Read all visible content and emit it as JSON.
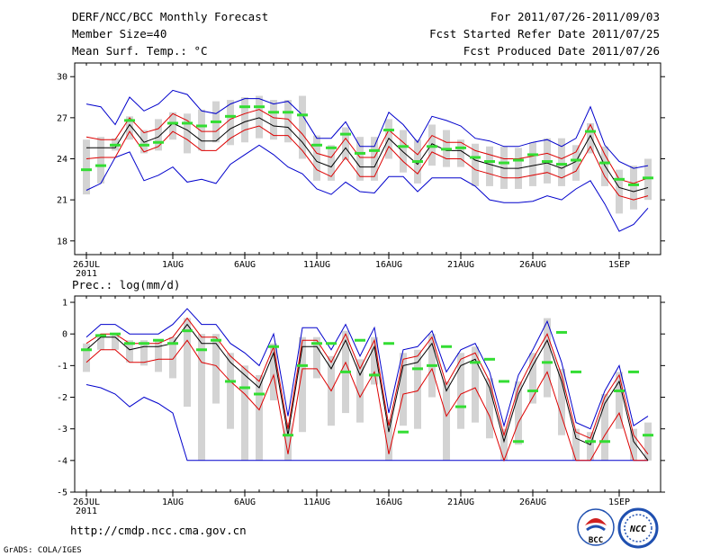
{
  "header": {
    "title": "DERF/NCC/BCC Monthly Forecast",
    "member_size": "Member Size=40",
    "variable": "Mean Surf. Temp.: °C",
    "period": "For 2011/07/26-2011/09/03",
    "started": "Fcst Started Refer Date 2011/07/25",
    "produced": "Fcst Produced Date 2011/07/26"
  },
  "footer": {
    "url": "http://cmdp.ncc.cma.gov.cn",
    "grads": "GrADS: COLA/IGES",
    "logo_bcc": "BCC",
    "logo_ncc": "NCC"
  },
  "colors": {
    "box": "#d3d3d3",
    "median": "#33dd33",
    "mean": "#000000",
    "spread": "#dd0000",
    "extreme": "#0000cc"
  },
  "chart_data": [
    {
      "type": "box-plume",
      "title": "Mean Surf. Temp.: °C",
      "ylim": [
        17,
        31
      ],
      "y_ticks": [
        18,
        21,
        24,
        27,
        30
      ],
      "x_tick_labels": [
        {
          "day": 0,
          "label": "26JUL",
          "sub": "2011"
        },
        {
          "day": 6,
          "label": "1AUG"
        },
        {
          "day": 11,
          "label": "6AUG"
        },
        {
          "day": 16,
          "label": "11AUG"
        },
        {
          "day": 21,
          "label": "16AUG"
        },
        {
          "day": 26,
          "label": "21AUG"
        },
        {
          "day": 31,
          "label": "26AUG"
        },
        {
          "day": 37,
          "label": "1SEP"
        }
      ],
      "mean": [
        24.8,
        24.8,
        24.8,
        26.5,
        25.2,
        25.6,
        26.6,
        26.1,
        25.3,
        25.3,
        26.2,
        26.7,
        27.0,
        26.4,
        26.3,
        25.2,
        23.8,
        23.4,
        24.8,
        23.4,
        23.4,
        25.5,
        24.5,
        23.6,
        25.1,
        24.6,
        24.6,
        23.9,
        23.6,
        23.3,
        23.3,
        23.5,
        23.7,
        23.3,
        23.8,
        25.7,
        23.5,
        21.9,
        21.6,
        21.9
      ],
      "spread_upper": [
        25.6,
        25.4,
        25.4,
        27.0,
        25.9,
        26.2,
        27.3,
        26.8,
        26.0,
        26.0,
        26.9,
        27.3,
        27.6,
        27.0,
        26.9,
        25.8,
        24.4,
        24.1,
        25.5,
        24.1,
        24.1,
        26.1,
        25.2,
        24.3,
        25.7,
        25.2,
        25.2,
        24.6,
        24.3,
        24.0,
        24.0,
        24.2,
        24.4,
        24.0,
        24.5,
        26.5,
        24.3,
        22.5,
        22.2,
        22.6
      ],
      "spread_lower": [
        24.0,
        24.1,
        24.1,
        26.0,
        24.5,
        24.9,
        26.0,
        25.4,
        24.6,
        24.6,
        25.5,
        26.1,
        26.4,
        25.7,
        25.7,
        24.6,
        23.2,
        22.7,
        24.1,
        22.7,
        22.7,
        24.9,
        23.8,
        22.9,
        24.5,
        24.0,
        24.0,
        23.2,
        22.9,
        22.6,
        22.6,
        22.8,
        23.0,
        22.6,
        23.1,
        24.9,
        22.7,
        21.3,
        21.0,
        21.3
      ],
      "max": [
        28.0,
        27.8,
        26.5,
        28.5,
        27.5,
        28.0,
        29.0,
        28.7,
        27.5,
        27.3,
        28.0,
        28.4,
        28.4,
        28.0,
        28.2,
        27.2,
        25.5,
        25.5,
        26.7,
        24.9,
        24.9,
        27.4,
        26.5,
        25.2,
        27.1,
        26.8,
        26.4,
        25.5,
        25.3,
        24.9,
        24.9,
        25.2,
        25.4,
        24.9,
        25.5,
        27.8,
        25.0,
        23.8,
        23.3,
        23.5
      ],
      "min": [
        21.7,
        22.2,
        24.1,
        24.5,
        22.4,
        22.8,
        23.4,
        22.3,
        22.5,
        22.2,
        23.6,
        24.3,
        25.0,
        24.3,
        23.4,
        22.9,
        21.8,
        21.4,
        22.3,
        21.6,
        21.5,
        22.7,
        22.7,
        21.6,
        22.6,
        22.6,
        22.6,
        22.0,
        21.0,
        20.8,
        20.8,
        20.9,
        21.3,
        21.0,
        21.8,
        22.4,
        20.7,
        18.7,
        19.2,
        20.4
      ],
      "box_high": [
        25.4,
        25.6,
        25.5,
        27.1,
        26.1,
        26.9,
        27.4,
        27.3,
        27.6,
        28.2,
        28.3,
        28.5,
        28.6,
        28.3,
        28.3,
        28.6,
        25.7,
        25.0,
        26.3,
        25.6,
        25.6,
        26.9,
        26.1,
        25.4,
        26.5,
        26.1,
        25.4,
        25.1,
        24.9,
        24.9,
        24.8,
        25.2,
        25.5,
        25.5,
        25.0,
        26.6,
        24.9,
        23.2,
        23.5,
        24.0
      ],
      "box_low": [
        21.4,
        22.2,
        24.6,
        25.4,
        24.4,
        24.6,
        25.4,
        24.4,
        24.6,
        25.2,
        25.0,
        25.2,
        25.5,
        25.4,
        25.2,
        24.0,
        22.4,
        22.4,
        23.9,
        22.4,
        22.4,
        24.0,
        23.0,
        22.2,
        23.5,
        23.4,
        23.4,
        22.0,
        22.0,
        21.8,
        21.8,
        22.0,
        22.2,
        22.0,
        22.4,
        24.4,
        22.0,
        20.0,
        20.3,
        21.0
      ],
      "median": [
        23.2,
        23.5,
        25.0,
        26.8,
        25.0,
        25.2,
        26.6,
        26.6,
        26.4,
        26.7,
        27.1,
        27.8,
        27.8,
        27.4,
        27.4,
        27.2,
        25.0,
        24.8,
        25.8,
        24.4,
        24.6,
        26.1,
        24.9,
        23.8,
        24.9,
        24.7,
        24.8,
        24.1,
        23.8,
        23.7,
        23.9,
        24.3,
        23.8,
        23.6,
        23.9,
        26.0,
        23.7,
        22.5,
        22.1,
        22.6
      ]
    },
    {
      "type": "box-plume",
      "title": "Prec.: log(mm/d)",
      "ylim": [
        -5,
        1.2
      ],
      "y_ticks": [
        -5,
        -4,
        -3,
        -2,
        -1,
        0,
        1
      ],
      "x_tick_labels": [
        {
          "day": 0,
          "label": "26JUL",
          "sub": "2011"
        },
        {
          "day": 6,
          "label": "1AUG"
        },
        {
          "day": 11,
          "label": "6AUG"
        },
        {
          "day": 16,
          "label": "11AUG"
        },
        {
          "day": 21,
          "label": "16AUG"
        },
        {
          "day": 26,
          "label": "21AUG"
        },
        {
          "day": 31,
          "label": "26AUG"
        },
        {
          "day": 37,
          "label": "1SEP"
        }
      ],
      "mean": [
        -0.5,
        -0.1,
        -0.1,
        -0.5,
        -0.4,
        -0.4,
        -0.3,
        0.3,
        -0.3,
        -0.3,
        -0.9,
        -1.3,
        -1.7,
        -0.6,
        -3.2,
        -0.4,
        -0.4,
        -1.1,
        -0.2,
        -1.3,
        -0.4,
        -3.1,
        -1.0,
        -0.9,
        -0.3,
        -1.8,
        -1.0,
        -0.8,
        -1.7,
        -3.4,
        -1.9,
        -1.0,
        -0.2,
        -1.5,
        -3.3,
        -3.5,
        -2.2,
        -1.5,
        -3.4,
        -4.0
      ],
      "spread_upper": [
        -0.3,
        0.0,
        0.0,
        -0.3,
        -0.3,
        -0.3,
        -0.1,
        0.5,
        -0.1,
        -0.1,
        -0.7,
        -1.1,
        -1.5,
        -0.4,
        -3.0,
        -0.2,
        -0.2,
        -0.9,
        0.0,
        -1.1,
        -0.2,
        -2.9,
        -0.8,
        -0.7,
        -0.1,
        -1.6,
        -0.8,
        -0.6,
        -1.5,
        -3.2,
        -1.7,
        -0.8,
        0.0,
        -1.3,
        -3.1,
        -3.3,
        -2.0,
        -1.3,
        -3.2,
        -3.8
      ],
      "spread_lower": [
        -0.9,
        -0.5,
        -0.5,
        -0.9,
        -0.9,
        -0.8,
        -0.8,
        -0.2,
        -0.9,
        -1.0,
        -1.5,
        -1.9,
        -2.4,
        -1.3,
        -3.8,
        -1.1,
        -1.1,
        -1.8,
        -0.9,
        -2.0,
        -1.2,
        -3.8,
        -1.9,
        -1.8,
        -1.1,
        -2.6,
        -1.9,
        -1.7,
        -2.6,
        -4.0,
        -2.8,
        -2.0,
        -1.2,
        -2.6,
        -4.0,
        -4.0,
        -3.2,
        -2.5,
        -4.0,
        -4.0
      ],
      "max": [
        -0.1,
        0.3,
        0.3,
        0.0,
        0.0,
        0.0,
        0.3,
        0.8,
        0.3,
        0.3,
        -0.3,
        -0.6,
        -1.0,
        0.0,
        -2.6,
        0.2,
        0.2,
        -0.5,
        0.3,
        -0.7,
        0.2,
        -2.5,
        -0.5,
        -0.4,
        0.1,
        -1.2,
        -0.5,
        -0.3,
        -1.2,
        -2.9,
        -1.3,
        -0.5,
        0.4,
        -0.9,
        -2.8,
        -3.0,
        -1.8,
        -1.0,
        -2.9,
        -2.6
      ],
      "min": [
        -1.6,
        -1.7,
        -1.9,
        -2.3,
        -2.0,
        -2.2,
        -2.5,
        -4.0,
        -4.0,
        -4.0,
        -4.0,
        -4.0,
        -4.0,
        -4.0,
        -4.0,
        -4.0,
        -4.0,
        -4.0,
        -4.0,
        -4.0,
        -4.0,
        -4.0,
        -4.0,
        -4.0,
        -4.0,
        -4.0,
        -4.0,
        -4.0,
        -4.0,
        -4.0,
        -4.0,
        -4.0,
        -4.0,
        -4.0,
        -4.0,
        -4.0,
        -4.0,
        -4.0,
        -4.0,
        -4.0
      ],
      "box_high": [
        -0.3,
        0.0,
        0.0,
        -0.2,
        -0.2,
        -0.2,
        -0.1,
        0.5,
        0.0,
        0.0,
        -0.6,
        -1.0,
        -1.3,
        -0.3,
        -2.8,
        -0.1,
        -0.1,
        -0.7,
        0.1,
        -0.8,
        -0.1,
        -2.7,
        -0.6,
        -0.5,
        0.0,
        -1.5,
        -0.6,
        -0.4,
        -1.4,
        -3.0,
        -1.5,
        -0.6,
        0.5,
        -1.1,
        -3.0,
        -3.1,
        -1.9,
        -1.2,
        -3.0,
        -2.8
      ],
      "box_low": [
        -1.2,
        -0.5,
        -0.5,
        -0.9,
        -1.0,
        -1.2,
        -1.4,
        -2.3,
        -4.0,
        -2.2,
        -3.0,
        -4.0,
        -4.0,
        -2.1,
        -4.0,
        -3.1,
        -1.4,
        -2.9,
        -2.5,
        -2.8,
        -1.6,
        -4.0,
        -2.9,
        -3.0,
        -2.0,
        -4.0,
        -3.0,
        -2.8,
        -3.3,
        -4.0,
        -3.5,
        -2.2,
        -2.0,
        -3.2,
        -4.0,
        -4.0,
        -4.0,
        -3.0,
        -4.0,
        -4.0
      ],
      "median": [
        -0.5,
        -0.05,
        0.0,
        -0.3,
        -0.3,
        -0.2,
        -0.3,
        0.1,
        -0.5,
        -0.2,
        -1.5,
        -1.7,
        -1.9,
        -0.4,
        -3.2,
        -1.0,
        -0.3,
        -0.3,
        -1.2,
        -0.2,
        -1.3,
        -0.3,
        -3.1,
        -1.1,
        -1.0,
        -0.4,
        -2.3,
        -0.9,
        -0.8,
        -1.5,
        -3.4,
        -1.8,
        -0.9,
        0.05,
        -1.2,
        -3.4,
        -3.4,
        -1.8,
        -1.2,
        -3.2
      ]
    }
  ]
}
